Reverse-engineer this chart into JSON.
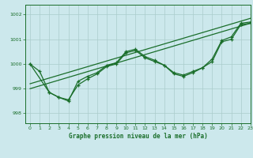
{
  "title": "Graphe pression niveau de la mer (hPa)",
  "bg_color": "#cce8ec",
  "grid_color": "#aacccc",
  "line_color": "#1a6e2a",
  "xlim": [
    -0.5,
    23
  ],
  "ylim": [
    997.6,
    1002.4
  ],
  "yticks": [
    998,
    999,
    1000,
    1001,
    1002
  ],
  "xticks": [
    0,
    1,
    2,
    3,
    4,
    5,
    6,
    7,
    8,
    9,
    10,
    11,
    12,
    13,
    14,
    15,
    16,
    17,
    18,
    19,
    20,
    21,
    22,
    23
  ],
  "series1_x": [
    0,
    1,
    2,
    3,
    4,
    5,
    6,
    7,
    8,
    9,
    10,
    11,
    12,
    13,
    14,
    15,
    16,
    17,
    18,
    19,
    20,
    21,
    22,
    23
  ],
  "series1_y": [
    1000.0,
    999.7,
    998.85,
    998.65,
    998.55,
    999.15,
    999.4,
    999.6,
    999.9,
    1000.0,
    1000.45,
    1000.55,
    1000.25,
    1000.1,
    999.95,
    999.65,
    999.55,
    999.7,
    999.85,
    1000.1,
    1000.9,
    1001.0,
    1001.6,
    1001.65
  ],
  "series2_x": [
    0,
    2,
    3,
    4,
    5,
    6,
    7,
    8,
    9,
    10,
    11,
    12,
    13,
    14,
    15,
    16,
    17,
    18,
    19,
    20,
    21,
    22,
    23
  ],
  "series2_y": [
    1000.0,
    998.85,
    998.65,
    998.5,
    999.3,
    999.5,
    999.65,
    999.95,
    1000.05,
    1000.5,
    1000.6,
    1000.3,
    1000.15,
    999.95,
    999.6,
    999.5,
    999.65,
    999.85,
    1000.2,
    1000.95,
    1001.1,
    1001.65,
    1001.7
  ],
  "trend1_x": [
    0,
    23
  ],
  "trend1_y": [
    999.2,
    1001.85
  ],
  "trend2_x": [
    0,
    23
  ],
  "trend2_y": [
    999.0,
    1001.65
  ]
}
